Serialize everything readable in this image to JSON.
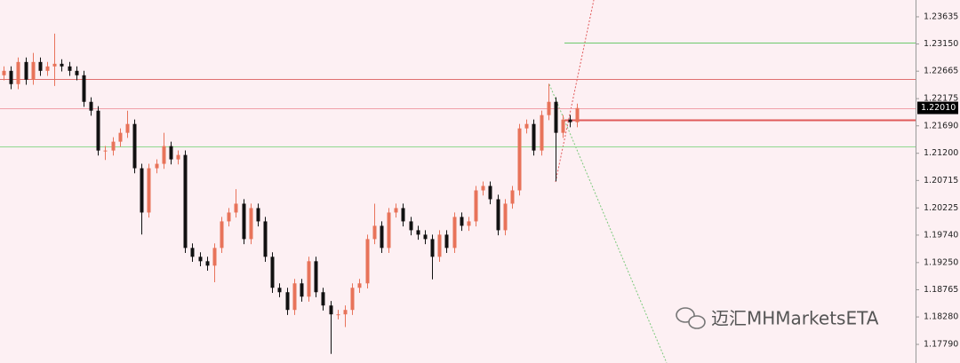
{
  "chart_data": {
    "type": "candlestick",
    "open": [
      1.22592,
      1.22671,
      1.22434,
      1.22829,
      1.22513,
      1.22829,
      1.22671,
      1.2275,
      1.22797,
      1.2275,
      1.22671,
      1.22592,
      1.22118,
      1.2196,
      1.21249,
      1.21249,
      1.21407,
      1.21565,
      1.21723,
      1.20933,
      1.20143,
      1.20933,
      1.21012,
      1.21328,
      1.21091,
      1.2117,
      1.19511,
      1.19353,
      1.19274,
      1.19195,
      1.19511,
      1.19985,
      1.20143,
      1.20301,
      1.19669,
      1.20222,
      1.19985,
      1.19353,
      1.188,
      1.18721,
      1.18405,
      1.18879,
      1.18642,
      1.19274,
      1.18721,
      1.18484,
      1.18326,
      1.18326,
      1.18405,
      1.188,
      1.18879,
      1.19669,
      1.19906,
      1.19511,
      1.20143,
      1.20222,
      1.19985,
      1.19827,
      1.19748,
      1.19669,
      1.19353,
      1.19748,
      1.19511,
      1.20064,
      1.19906,
      1.19985,
      1.20538,
      1.20617,
      1.2038,
      1.19827,
      1.20301,
      1.20538,
      1.21644,
      1.21723,
      1.21249,
      1.21881,
      1.22118,
      1.21565,
      1.21802,
      1.21755
    ],
    "high": [
      1.22751,
      1.22751,
      1.22909,
      1.22909,
      1.2299,
      1.22909,
      1.2283,
      1.23335,
      1.22877,
      1.2283,
      1.22751,
      1.22672,
      1.22198,
      1.2204,
      1.21329,
      1.21487,
      1.21645,
      1.2196,
      1.21803,
      1.21013,
      1.21013,
      1.21092,
      1.21565,
      1.21408,
      1.2125,
      1.2125,
      1.19591,
      1.19433,
      1.19354,
      1.19591,
      1.20065,
      1.20223,
      1.2056,
      1.20381,
      1.20302,
      1.20302,
      1.20065,
      1.19433,
      1.1888,
      1.18801,
      1.18959,
      1.18959,
      1.19354,
      1.19354,
      1.18801,
      1.18564,
      1.18406,
      1.18485,
      1.1888,
      1.18959,
      1.19749,
      1.203,
      1.19986,
      1.20223,
      1.20302,
      1.20302,
      1.20065,
      1.19907,
      1.19828,
      1.19749,
      1.19828,
      1.19828,
      1.20144,
      1.20144,
      1.20065,
      1.20618,
      1.20697,
      1.20697,
      1.2046,
      1.20381,
      1.20618,
      1.21724,
      1.21803,
      1.21803,
      1.21961,
      1.2244,
      1.22198,
      1.21882,
      1.21882,
      1.22087
    ],
    "low": [
      1.22502,
      1.22344,
      1.22344,
      1.22423,
      1.22423,
      1.22581,
      1.22581,
      1.224,
      1.2266,
      1.22581,
      1.22502,
      1.22028,
      1.2187,
      1.21159,
      1.2108,
      1.21159,
      1.21317,
      1.21475,
      1.20843,
      1.1975,
      1.20053,
      1.20843,
      1.20922,
      1.21001,
      1.21001,
      1.19421,
      1.19263,
      1.19184,
      1.19105,
      1.189,
      1.19421,
      1.19895,
      1.20053,
      1.19579,
      1.19579,
      1.19895,
      1.19263,
      1.1871,
      1.18631,
      1.18315,
      1.18315,
      1.18552,
      1.18552,
      1.18631,
      1.18394,
      1.1762,
      1.18236,
      1.181,
      1.18315,
      1.1871,
      1.18789,
      1.19579,
      1.19421,
      1.19421,
      1.20053,
      1.19895,
      1.19737,
      1.19658,
      1.19579,
      1.1895,
      1.19263,
      1.19421,
      1.19421,
      1.19816,
      1.19816,
      1.19895,
      1.20448,
      1.2029,
      1.19737,
      1.19737,
      1.20211,
      1.20448,
      1.21554,
      1.21159,
      1.21159,
      1.21791,
      1.207,
      1.21475,
      1.21665,
      1.21665
    ],
    "close": [
      1.22671,
      1.22434,
      1.22829,
      1.22513,
      1.22829,
      1.22671,
      1.2275,
      1.22797,
      1.2275,
      1.22671,
      1.22592,
      1.22118,
      1.2196,
      1.21249,
      1.21249,
      1.21407,
      1.21565,
      1.21723,
      1.20933,
      1.20143,
      1.20933,
      1.21012,
      1.21328,
      1.21091,
      1.2117,
      1.19511,
      1.19353,
      1.19274,
      1.19195,
      1.19511,
      1.19985,
      1.20143,
      1.20301,
      1.19669,
      1.20222,
      1.19985,
      1.19353,
      1.188,
      1.18721,
      1.18405,
      1.18879,
      1.18642,
      1.19274,
      1.18721,
      1.18484,
      1.18326,
      1.18326,
      1.18405,
      1.188,
      1.18879,
      1.19669,
      1.19906,
      1.19511,
      1.20143,
      1.20222,
      1.19985,
      1.19827,
      1.19748,
      1.19669,
      1.19353,
      1.19748,
      1.19511,
      1.20064,
      1.19906,
      1.19985,
      1.20538,
      1.20617,
      1.2038,
      1.19827,
      1.20301,
      1.20538,
      1.21644,
      1.21723,
      1.21249,
      1.21881,
      1.22118,
      1.21565,
      1.21802,
      1.21755,
      1.22007
    ],
    "up_color": "#e8735a",
    "down_color": "#111111",
    "ylim": [
      1.17458,
      1.23935
    ],
    "yticks": [
      1.23635,
      {
        "value": 1.2315,
        "label": "1.23150"
      },
      1.22665,
      1.22175,
      {
        "value": 1.2169,
        "label": "1.21690"
      },
      {
        "value": 1.212,
        "label": "1.21200"
      },
      1.20715,
      1.20225,
      {
        "value": 1.1974,
        "label": "1.19740"
      },
      {
        "value": 1.1925,
        "label": "1.19250"
      },
      1.18765,
      {
        "value": 1.1828,
        "label": "1.18280"
      },
      {
        "value": 1.1779,
        "label": "1.17790"
      }
    ],
    "levels": [
      {
        "value": 1.22529,
        "color": "#e07070"
      },
      {
        "value": 1.2201,
        "color": "#f0a0a8"
      },
      {
        "value": 1.21328,
        "color": "#8fd88f"
      },
      {
        "value": 1.23177,
        "color": "#6cc96c"
      },
      {
        "value": 1.21802,
        "color": "#e05a5a"
      }
    ],
    "current_price": {
      "value": 1.2201,
      "label": "1.22010"
    },
    "watermark": "迈汇MHMarketsETA"
  }
}
